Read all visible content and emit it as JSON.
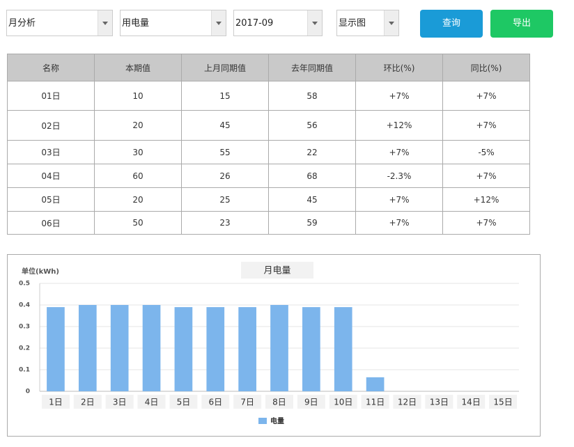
{
  "controls": {
    "selects": [
      "月分析",
      "用电量",
      "2017-09",
      "显示图"
    ],
    "buttons": [
      "查询",
      "导出"
    ]
  },
  "table": {
    "header": [
      "名称",
      "本期值",
      "上月同期值",
      "去年同期值",
      "环比(%)",
      "同比(%)"
    ],
    "rows": [
      [
        "01日",
        "10",
        "15",
        "58",
        "+7%",
        "+7%"
      ],
      [
        "02日",
        "20",
        "45",
        "56",
        "+12%",
        "+7%"
      ],
      [
        "03日",
        "30",
        "55",
        "22",
        "+7%",
        "-5%"
      ],
      [
        "04日",
        "60",
        "26",
        "68",
        "-2.3%",
        "+7%"
      ],
      [
        "05日",
        "20",
        "25",
        "45",
        "+7%",
        "+12%"
      ],
      [
        "06日",
        "50",
        "23",
        "59",
        "+7%",
        "+7%"
      ]
    ]
  },
  "chart_data": {
    "type": "bar",
    "title": "月电量",
    "ylabel": "单位(kWh)",
    "categories": [
      "1日",
      "2日",
      "3日",
      "4日",
      "5日",
      "6日",
      "7日",
      "8日",
      "9日",
      "10日",
      "11日",
      "12日",
      "13日",
      "14日",
      "15日"
    ],
    "series": [
      {
        "name": "电量",
        "color": "#7cb5ec",
        "values": [
          0.39,
          0.4,
          0.4,
          0.4,
          0.39,
          0.39,
          0.39,
          0.4,
          0.39,
          0.39,
          0.065,
          null,
          null,
          null,
          null
        ]
      }
    ],
    "ylim": [
      0,
      0.5
    ],
    "yticks": [
      0,
      0.1,
      0.2,
      0.3,
      0.4,
      0.5
    ],
    "grid": true
  }
}
